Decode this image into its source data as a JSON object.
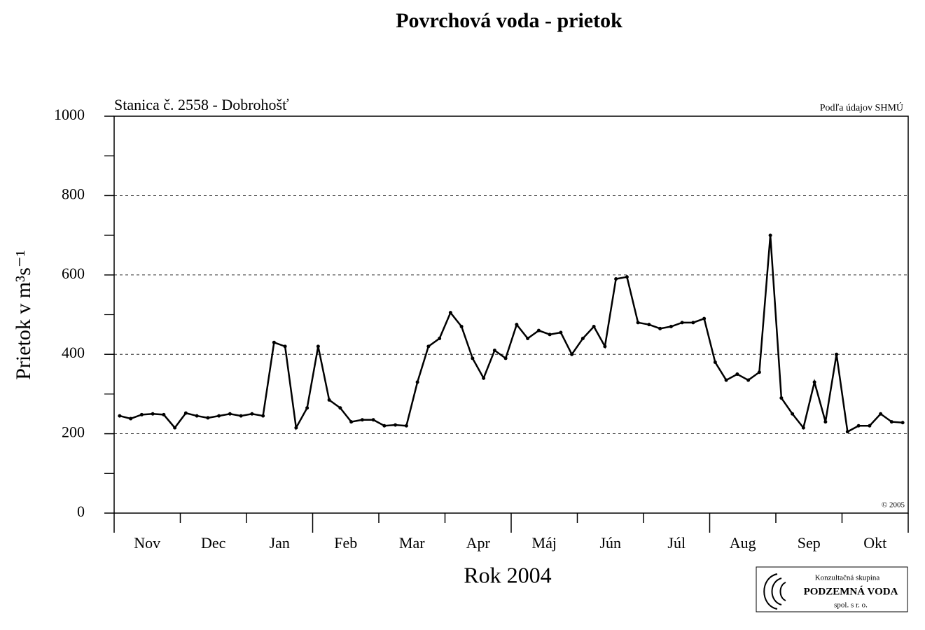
{
  "chart_data": {
    "type": "line",
    "title": "Povrchová voda - prietok",
    "subtitle": "Stanica č. 2558  -  Dobrohošť",
    "source": "Podľa údajov SHMÚ",
    "copyright": "© 2005",
    "y_label": "Prietok  v  m³s⁻¹",
    "x_label": "Rok 2004",
    "logo": {
      "line1": "Konzultačná skupina",
      "line2": "PODZEMNÁ VODA",
      "line3": "spol. s r. o."
    },
    "categories": [
      null,
      null,
      "Nov",
      null,
      null,
      null,
      null,
      null,
      "Dec",
      null,
      null,
      null,
      null,
      null,
      "Jan",
      null,
      null,
      null,
      null,
      null,
      "Feb",
      null,
      null,
      null,
      null,
      null,
      "Mar",
      null,
      null,
      null,
      null,
      null,
      "Apr",
      null,
      null,
      null,
      null,
      null,
      "Máj",
      null,
      null,
      null,
      null,
      null,
      "Jún",
      null,
      null,
      null,
      null,
      null,
      "Júl",
      null,
      null,
      null,
      null,
      null,
      "Aug",
      null,
      null,
      null,
      null,
      null,
      "Sep",
      null,
      null,
      null,
      null,
      null,
      "Okt",
      null,
      null,
      null
    ],
    "series": [
      {
        "name": "Prietok",
        "color": "#000000",
        "values": [
          245,
          238,
          248,
          250,
          248,
          215,
          252,
          245,
          240,
          245,
          250,
          245,
          250,
          245,
          430,
          420,
          215,
          265,
          420,
          285,
          265,
          230,
          235,
          235,
          220,
          222,
          220,
          330,
          420,
          440,
          505,
          470,
          390,
          340,
          410,
          390,
          475,
          440,
          460,
          450,
          455,
          400,
          440,
          470,
          420,
          590,
          595,
          480,
          475,
          465,
          470,
          480,
          480,
          490,
          380,
          335,
          350,
          335,
          355,
          700,
          290,
          250,
          215,
          330,
          230,
          400,
          205,
          220,
          220,
          250,
          230,
          228
        ]
      }
    ],
    "ylim": [
      0,
      1000
    ],
    "yticks": [
      0,
      200,
      400,
      600,
      800,
      1000
    ],
    "yticks_minor": [
      100,
      300,
      500,
      700,
      900
    ],
    "grid": true
  }
}
